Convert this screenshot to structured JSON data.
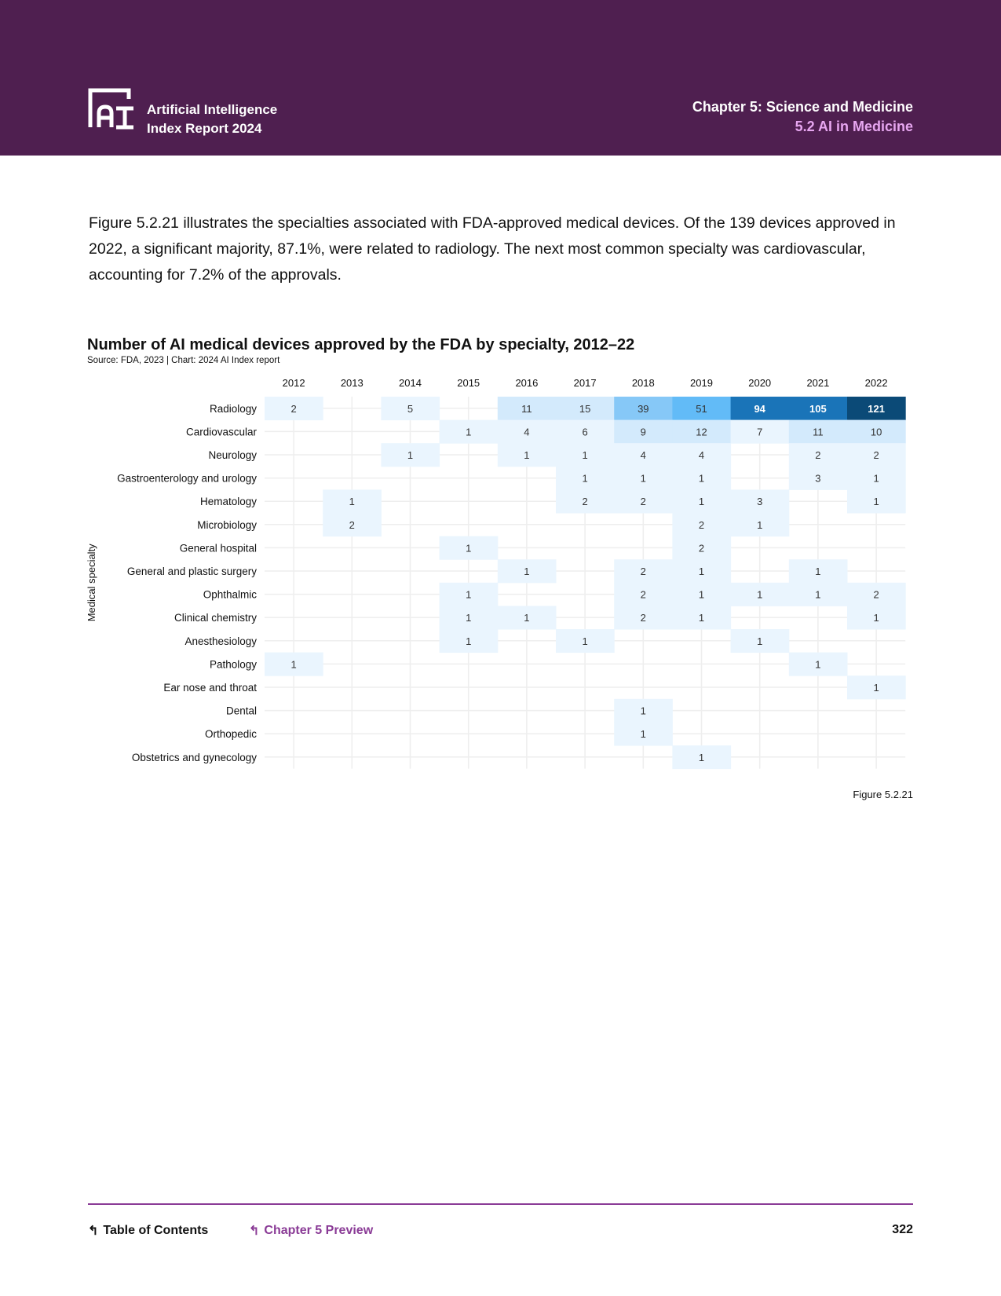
{
  "header": {
    "brand_line1": "Artificial Intelligence",
    "brand_line2": "Index Report 2024",
    "chapter": "Chapter 5: Science and Medicine",
    "section": "5.2 AI in Medicine"
  },
  "body_text": "Figure 5.2.21 illustrates the specialties associated with FDA-approved medical devices. Of the 139 devices approved in 2022, a significant majority, 87.1%, were related to radiology. The next most common specialty was cardiovascular, accounting for 7.2% of the approvals.",
  "chart_data": {
    "type": "heatmap",
    "title": "Number of AI medical devices approved by the FDA by specialty, 2012–22",
    "source": "Source: FDA, 2023 | Chart: 2024 AI Index report",
    "ylabel": "Medical specialty",
    "x": [
      "2012",
      "2013",
      "2014",
      "2015",
      "2016",
      "2017",
      "2018",
      "2019",
      "2020",
      "2021",
      "2022"
    ],
    "rows": [
      {
        "name": "Radiology",
        "values": [
          2,
          null,
          5,
          null,
          11,
          15,
          39,
          51,
          94,
          105,
          121
        ]
      },
      {
        "name": "Cardiovascular",
        "values": [
          null,
          null,
          null,
          1,
          4,
          6,
          9,
          12,
          7,
          11,
          10
        ]
      },
      {
        "name": "Neurology",
        "values": [
          null,
          null,
          1,
          null,
          1,
          1,
          4,
          4,
          null,
          2,
          2
        ]
      },
      {
        "name": "Gastroenterology and urology",
        "values": [
          null,
          null,
          null,
          null,
          null,
          1,
          1,
          1,
          null,
          3,
          1
        ]
      },
      {
        "name": "Hematology",
        "values": [
          null,
          1,
          null,
          null,
          null,
          2,
          2,
          1,
          3,
          null,
          1
        ]
      },
      {
        "name": "Microbiology",
        "values": [
          null,
          2,
          null,
          null,
          null,
          null,
          null,
          2,
          1,
          null,
          null
        ]
      },
      {
        "name": "General hospital",
        "values": [
          null,
          null,
          null,
          1,
          null,
          null,
          null,
          2,
          null,
          null,
          null
        ]
      },
      {
        "name": "General and plastic surgery",
        "values": [
          null,
          null,
          null,
          null,
          1,
          null,
          2,
          1,
          null,
          1,
          null
        ]
      },
      {
        "name": "Ophthalmic",
        "values": [
          null,
          null,
          null,
          1,
          null,
          null,
          2,
          1,
          1,
          1,
          2
        ]
      },
      {
        "name": "Clinical chemistry",
        "values": [
          null,
          null,
          null,
          1,
          1,
          null,
          2,
          1,
          null,
          null,
          1
        ]
      },
      {
        "name": "Anesthesiology",
        "values": [
          null,
          null,
          null,
          1,
          null,
          1,
          null,
          null,
          1,
          null,
          null
        ]
      },
      {
        "name": "Pathology",
        "values": [
          1,
          null,
          null,
          null,
          null,
          null,
          null,
          null,
          null,
          1,
          null
        ]
      },
      {
        "name": "Ear nose and throat",
        "values": [
          null,
          null,
          null,
          null,
          null,
          null,
          null,
          null,
          null,
          null,
          1
        ]
      },
      {
        "name": "Dental",
        "values": [
          null,
          null,
          null,
          null,
          null,
          null,
          1,
          null,
          null,
          null,
          null
        ]
      },
      {
        "name": "Orthopedic",
        "values": [
          null,
          null,
          null,
          null,
          null,
          null,
          1,
          null,
          null,
          null,
          null
        ]
      },
      {
        "name": "Obstetrics and gynecology",
        "values": [
          null,
          null,
          null,
          null,
          null,
          null,
          null,
          1,
          null,
          null,
          null
        ]
      }
    ],
    "color_scale": [
      "#eaf5fe",
      "#d3eafc",
      "#86c8f7",
      "#62bbf7",
      "#1a74b8",
      "#0b4a77"
    ],
    "figure_label": "Figure 5.2.21"
  },
  "footer": {
    "toc": "Table of Contents",
    "preview": "Chapter 5 Preview",
    "page": "322"
  }
}
